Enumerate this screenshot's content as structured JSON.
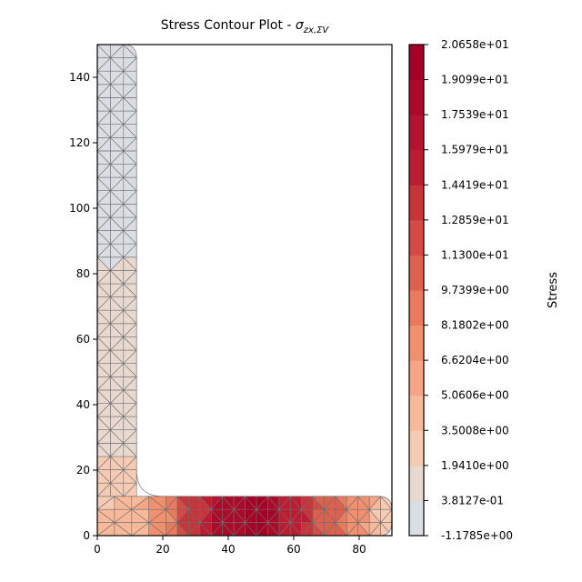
{
  "chart_data": {
    "type": "heatmap",
    "title_text": "Stress Contour Plot - ",
    "title_sigma": "σ",
    "title_subscript": "zx,ΣV",
    "xlim": [
      0,
      90
    ],
    "ylim": [
      0,
      150
    ],
    "x_ticks": [
      0,
      20,
      40,
      60,
      80
    ],
    "y_ticks": [
      0,
      20,
      40,
      60,
      80,
      100,
      120,
      140
    ],
    "grid": false,
    "section": {
      "shape": "angle",
      "width": 90,
      "height": 150,
      "thickness": 12,
      "root_radius": 8,
      "toe_radius": 4
    },
    "colorbar": {
      "label": "Stress",
      "min": -1.1785,
      "max": 20.658,
      "tick_labels": [
        "-1.1785e+00",
        "3.8127e-01",
        "1.9410e+00",
        "3.5008e+00",
        "5.0606e+00",
        "6.6204e+00",
        "8.1802e+00",
        "9.7399e+00",
        "1.1300e+01",
        "1.2859e+01",
        "1.4419e+01",
        "1.5979e+01",
        "1.7539e+01",
        "1.9099e+01",
        "2.0658e+01"
      ],
      "colors": [
        "#dadde3",
        "#e8d8cf",
        "#f5cbb5",
        "#f8b99b",
        "#f6a486",
        "#f1906f",
        "#e97a5e",
        "#de6150",
        "#d34b44",
        "#c7343a",
        "#bd1d33",
        "#b5132f",
        "#ad0a2b",
        "#a50026"
      ]
    },
    "series": [
      {
        "values_desc": "vertical leg",
        "points": [
          [
            6,
            140,
            0.1
          ],
          [
            6,
            100,
            0.2
          ],
          [
            6,
            60,
            0.5
          ],
          [
            6,
            30,
            1.5
          ],
          [
            6,
            15,
            3.0
          ]
        ]
      },
      {
        "values_desc": "horizontal leg",
        "points": [
          [
            10,
            5,
            4.0
          ],
          [
            20,
            6,
            8.0
          ],
          [
            30,
            6,
            14.0
          ],
          [
            40,
            6,
            19.0
          ],
          [
            50,
            6,
            19.5
          ],
          [
            60,
            6,
            15.0
          ],
          [
            70,
            6,
            11.0
          ],
          [
            80,
            6,
            7.0
          ],
          [
            88,
            5,
            3.0
          ]
        ]
      }
    ]
  }
}
